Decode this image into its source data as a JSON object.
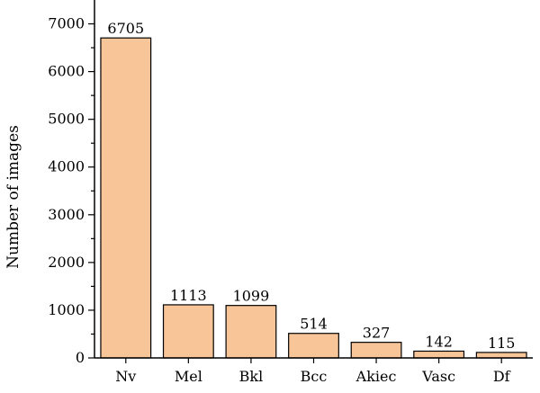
{
  "chart_data": {
    "type": "bar",
    "categories": [
      "Nv",
      "Mel",
      "Bkl",
      "Bcc",
      "Akiec",
      "Vasc",
      "Df"
    ],
    "values": [
      6705,
      1113,
      1099,
      514,
      327,
      142,
      115
    ],
    "data_labels": [
      "6705",
      "1113",
      "1099",
      "514",
      "327",
      "142",
      "115"
    ],
    "title": "",
    "xlabel": "",
    "ylabel": "Number of images",
    "ylim": [
      0,
      7500
    ],
    "yticks": [
      0,
      1000,
      2000,
      3000,
      4000,
      5000,
      6000,
      7000
    ],
    "yticks_minor": [
      500,
      1500,
      2500,
      3500,
      4500,
      5500,
      6500
    ],
    "grid": false,
    "legend": "none",
    "bar_color": "#f8c599",
    "edge_color": "#000000"
  }
}
